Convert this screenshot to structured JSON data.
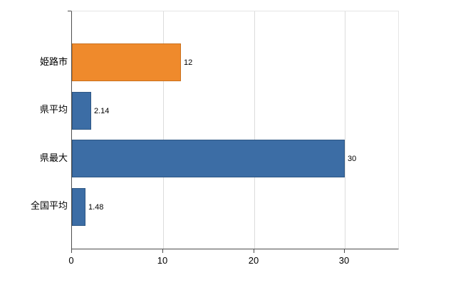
{
  "chart_data": {
    "type": "bar",
    "orientation": "horizontal",
    "title": "",
    "xlabel": "",
    "ylabel": "",
    "categories": [
      "姫路市",
      "県平均",
      "県最大",
      "全国平均"
    ],
    "values": [
      12,
      2.14,
      30,
      1.48
    ],
    "value_labels": [
      "12",
      "2.14",
      "30",
      "1.48"
    ],
    "bar_colors": [
      "#ef8a2c",
      "#3c6da5",
      "#3c6da5",
      "#3c6da5"
    ],
    "bar_border_colors": [
      "#c9701d",
      "#2e5784",
      "#2e5784",
      "#2e5784"
    ],
    "x_ticks": [
      0,
      10,
      20,
      30
    ],
    "x_tick_labels": [
      "0",
      "10",
      "20",
      "30"
    ],
    "xlim": [
      0,
      36
    ],
    "grid": true,
    "legend": false
  },
  "colors": {
    "background": "#ffffff",
    "grid": "#dcdcdc",
    "axis": "#4d4d4d",
    "text": "#000000"
  }
}
